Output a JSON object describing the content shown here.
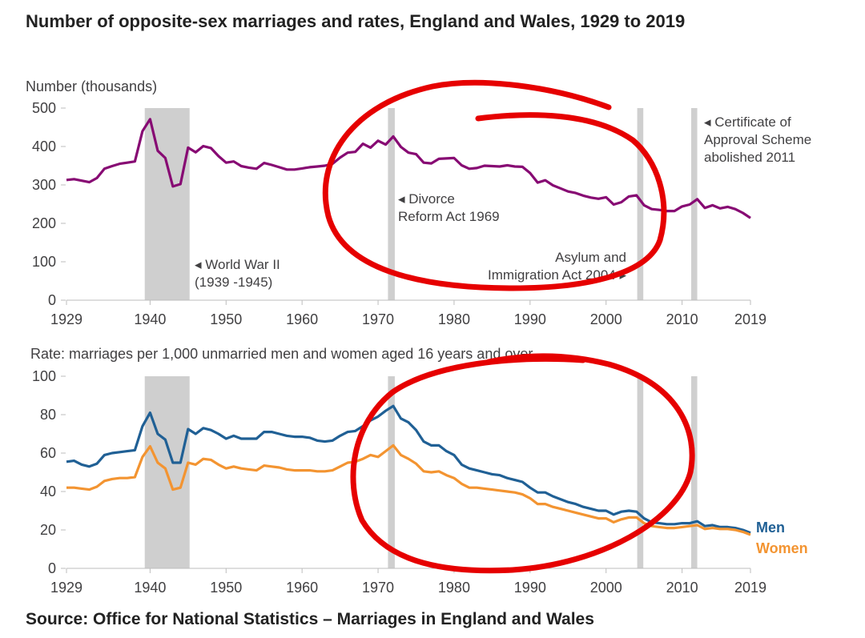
{
  "title": "Number of opposite-sex marriages and rates, England and Wales, 1929 to 2019",
  "source": "Source: Office for National Statistics – Marriages in England and Wales",
  "colors": {
    "marriages": "#870a73",
    "men": "#206095",
    "women": "#f39431",
    "band": "#cfcfcf",
    "ink": "#e60000"
  },
  "shaded_periods": [
    {
      "name": "World War II",
      "start": 1939.3,
      "end": 1945.2
    },
    {
      "name": "Divorce Reform Act 1969",
      "start": 1971.3,
      "end": 1972.2
    },
    {
      "name": "Asylum and Immigration Act 2004",
      "start": 2004.1,
      "end": 2004.9
    },
    {
      "name": "Certificate of Approval Scheme",
      "start": 2011.2,
      "end": 2012.0
    }
  ],
  "chart_data": [
    {
      "type": "line",
      "title": "Number (thousands)",
      "xlabel": "",
      "ylabel": "Number (thousands)",
      "xlim": [
        1929,
        2019
      ],
      "ylim": [
        0,
        500
      ],
      "yticks": [
        0,
        100,
        200,
        300,
        400,
        500
      ],
      "xticks": [
        1929,
        1940,
        1950,
        1960,
        1970,
        1980,
        1990,
        2000,
        2010,
        2019
      ],
      "annotations": [
        {
          "year": 1945,
          "lines": [
            "◂ World War II",
            "(1939 -1945)"
          ]
        },
        {
          "year": 1972,
          "lines": [
            "◂ Divorce",
            "Reform Act 1969"
          ]
        },
        {
          "year": 2004,
          "lines": [
            "Asylum and",
            "Immigration Act 2004 ▸"
          ]
        },
        {
          "year": 2012,
          "lines": [
            "◂ Certificate of",
            "Approval Scheme",
            "abolished 2011"
          ]
        }
      ],
      "series": [
        {
          "name": "Marriages",
          "x": [
            1929,
            1930,
            1931,
            1932,
            1933,
            1934,
            1935,
            1936,
            1937,
            1938,
            1939,
            1940,
            1941,
            1942,
            1943,
            1944,
            1945,
            1946,
            1947,
            1948,
            1949,
            1950,
            1951,
            1952,
            1953,
            1954,
            1955,
            1956,
            1957,
            1958,
            1959,
            1960,
            1961,
            1962,
            1963,
            1964,
            1965,
            1966,
            1967,
            1968,
            1969,
            1970,
            1971,
            1972,
            1973,
            1974,
            1975,
            1976,
            1977,
            1978,
            1979,
            1980,
            1981,
            1982,
            1983,
            1984,
            1985,
            1986,
            1987,
            1988,
            1989,
            1990,
            1991,
            1992,
            1993,
            1994,
            1995,
            1996,
            1997,
            1998,
            1999,
            2000,
            2001,
            2002,
            2003,
            2004,
            2005,
            2006,
            2007,
            2008,
            2009,
            2010,
            2011,
            2012,
            2013,
            2014,
            2015,
            2016,
            2017,
            2018,
            2019
          ],
          "values": [
            313,
            315,
            311,
            307,
            318,
            342,
            349,
            355,
            358,
            361,
            440,
            471,
            389,
            370,
            296,
            302,
            397,
            385,
            401,
            396,
            375,
            358,
            361,
            349,
            345,
            342,
            357,
            352,
            346,
            340,
            340,
            343,
            346,
            348,
            350,
            355,
            371,
            384,
            386,
            407,
            397,
            415,
            405,
            426,
            399,
            384,
            380,
            358,
            356,
            368,
            369,
            370,
            351,
            342,
            344,
            350,
            349,
            348,
            351,
            348,
            347,
            331,
            306,
            312,
            299,
            291,
            283,
            279,
            272,
            267,
            264,
            268,
            249,
            255,
            270,
            273,
            247,
            237,
            235,
            232,
            232,
            244,
            249,
            263,
            240,
            247,
            239,
            243,
            237,
            227,
            214
          ]
        }
      ]
    },
    {
      "type": "line",
      "title": "Rate: marriages per 1,000 unmarried men and women aged 16 years and over",
      "xlabel": "",
      "ylabel": "Rate: marriages per 1,000 unmarried men and women aged 16 years and over",
      "xlim": [
        1929,
        2019
      ],
      "ylim": [
        0,
        100
      ],
      "yticks": [
        0,
        20,
        40,
        60,
        80,
        100
      ],
      "xticks": [
        1929,
        1940,
        1950,
        1960,
        1970,
        1980,
        1990,
        2000,
        2010,
        2019
      ],
      "series": [
        {
          "name": "Men",
          "x": [
            1929,
            1930,
            1931,
            1932,
            1933,
            1934,
            1935,
            1936,
            1937,
            1938,
            1939,
            1940,
            1941,
            1942,
            1943,
            1944,
            1945,
            1946,
            1947,
            1948,
            1949,
            1950,
            1951,
            1952,
            1953,
            1954,
            1955,
            1956,
            1957,
            1958,
            1959,
            1960,
            1961,
            1962,
            1963,
            1964,
            1965,
            1966,
            1967,
            1968,
            1969,
            1970,
            1971,
            1972,
            1973,
            1974,
            1975,
            1976,
            1977,
            1978,
            1979,
            1980,
            1981,
            1982,
            1983,
            1984,
            1985,
            1986,
            1987,
            1988,
            1989,
            1990,
            1991,
            1992,
            1993,
            1994,
            1995,
            1996,
            1997,
            1998,
            1999,
            2000,
            2001,
            2002,
            2003,
            2004,
            2005,
            2006,
            2007,
            2008,
            2009,
            2010,
            2011,
            2012,
            2013,
            2014,
            2015,
            2016,
            2017,
            2018,
            2019
          ],
          "values": [
            55.5,
            56,
            54,
            53,
            54.5,
            59,
            60,
            60.5,
            61,
            61.5,
            74,
            81,
            70,
            67,
            55,
            55,
            72.5,
            70,
            73,
            72,
            70,
            67.5,
            69,
            67.5,
            67.5,
            67.5,
            71,
            71,
            70,
            69,
            68.5,
            68.5,
            68,
            66.5,
            66,
            66.5,
            69,
            71,
            71.5,
            74,
            77,
            79,
            82,
            84.5,
            78,
            76,
            72,
            66,
            64,
            64,
            61,
            59,
            54,
            52,
            51,
            50,
            49,
            48.5,
            47,
            46,
            45,
            42,
            39.5,
            39.5,
            37.5,
            36,
            34.5,
            33.5,
            32,
            31,
            30,
            30,
            28,
            29.5,
            30,
            29.5,
            26,
            24,
            23.5,
            23,
            23,
            23.5,
            23.5,
            24.5,
            22,
            22.5,
            21.5,
            21.5,
            21,
            20,
            18.5
          ]
        },
        {
          "name": "Women",
          "x": [
            1929,
            1930,
            1931,
            1932,
            1933,
            1934,
            1935,
            1936,
            1937,
            1938,
            1939,
            1940,
            1941,
            1942,
            1943,
            1944,
            1945,
            1946,
            1947,
            1948,
            1949,
            1950,
            1951,
            1952,
            1953,
            1954,
            1955,
            1956,
            1957,
            1958,
            1959,
            1960,
            1961,
            1962,
            1963,
            1964,
            1965,
            1966,
            1967,
            1968,
            1969,
            1970,
            1971,
            1972,
            1973,
            1974,
            1975,
            1976,
            1977,
            1978,
            1979,
            1980,
            1981,
            1982,
            1983,
            1984,
            1985,
            1986,
            1987,
            1988,
            1989,
            1990,
            1991,
            1992,
            1993,
            1994,
            1995,
            1996,
            1997,
            1998,
            1999,
            2000,
            2001,
            2002,
            2003,
            2004,
            2005,
            2006,
            2007,
            2008,
            2009,
            2010,
            2011,
            2012,
            2013,
            2014,
            2015,
            2016,
            2017,
            2018,
            2019
          ],
          "values": [
            42,
            42,
            41.5,
            41,
            42.5,
            45.5,
            46.5,
            47,
            47,
            47.5,
            58,
            63.5,
            55,
            52,
            41,
            42,
            55,
            54,
            57,
            56.5,
            54,
            52,
            53,
            52,
            51.5,
            51,
            53.5,
            53,
            52.5,
            51.5,
            51,
            51,
            51,
            50.5,
            50.5,
            51,
            53,
            55,
            55.5,
            57,
            59,
            58,
            61,
            64,
            59,
            57,
            54.5,
            50.5,
            50,
            50.5,
            48.5,
            47,
            44,
            42,
            42,
            41.5,
            41,
            40.5,
            40,
            39.5,
            38.5,
            36.5,
            33.5,
            33.5,
            32,
            31,
            30,
            29,
            28,
            27,
            26,
            26,
            24,
            25.5,
            26.5,
            26.5,
            23.5,
            22,
            21.5,
            21,
            21,
            21.5,
            22,
            22.5,
            20.5,
            21,
            20.5,
            20.5,
            20,
            19,
            17.5
          ]
        }
      ]
    }
  ]
}
